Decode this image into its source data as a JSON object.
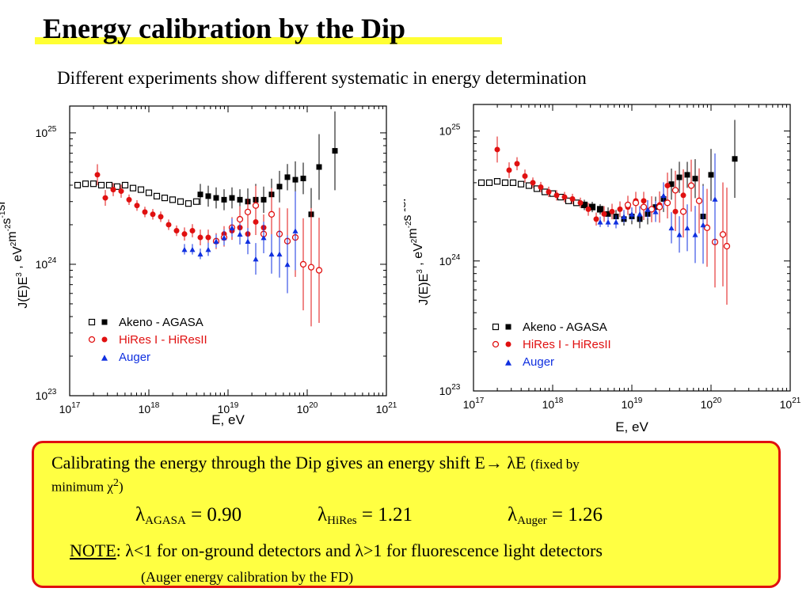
{
  "slide": {
    "title": "Energy calibration by the Dip",
    "subtitle": "Different experiments show different systematic in energy determination"
  },
  "note_box": {
    "line1_main": "Calibrating the energy through the Dip gives an energy shift E→ λE",
    "line1_small": "(fixed by",
    "line2_prefix": "minimum χ",
    "line2_sup": "2",
    "line2_suffix": ")",
    "lambdas": [
      {
        "sym": "λ",
        "sub": "AGASA",
        "value": "= 0.90"
      },
      {
        "sym": "λ",
        "sub": "HiRes",
        "value": "= 1.21"
      },
      {
        "sym": "λ",
        "sub": "Auger",
        "value": "= 1.26"
      }
    ],
    "note_label": "NOTE",
    "note_text": ": λ<1 for on-ground detectors and λ>1 for fluorescence light detectors",
    "fd_text": "(Auger energy calibration by the FD)"
  },
  "colors": {
    "title_bar": "#ffff33",
    "box_fill": "#ffff42",
    "box_border": "#e01010",
    "agasa": "#000000",
    "hires": "#e01010",
    "auger": "#1030e0"
  },
  "chart_data": [
    {
      "type": "scatter",
      "xlabel": "E, eV",
      "ylabel": "J(E)E^3 , eV^2m^-2s^-1sr^-1",
      "xscale": "log",
      "yscale": "log",
      "xlim": [
        1e+17,
        1e+21
      ],
      "ylim": [
        1e+23,
        1.6e+25
      ],
      "x_ticks": [
        {
          "b": "10",
          "e": "17",
          "v": 17
        },
        {
          "b": "10",
          "e": "18",
          "v": 18
        },
        {
          "b": "10",
          "e": "19",
          "v": 19
        },
        {
          "b": "10",
          "e": "20",
          "v": 20
        },
        {
          "b": "10",
          "e": "21",
          "v": 21
        }
      ],
      "y_ticks": [
        {
          "b": "10",
          "e": "23",
          "v": 23
        },
        {
          "b": "10",
          "e": "24",
          "v": 24
        },
        {
          "b": "10",
          "e": "25",
          "v": 25
        }
      ],
      "legend": [
        {
          "label": "Akeno - AGASA"
        },
        {
          "label": "HiRes I - HiResII"
        },
        {
          "label": "Auger"
        }
      ],
      "legend_position": "bottom-left",
      "series": [
        {
          "name": "Akeno - AGASA",
          "marker": "square-open",
          "color": "#000000",
          "x": [
            17.1,
            17.2,
            17.3,
            17.4,
            17.5,
            17.6,
            17.7,
            17.8,
            17.9,
            18.0,
            18.1,
            18.2,
            18.3,
            18.4,
            18.5,
            18.6
          ],
          "y": [
            4e+24,
            4.1e+24,
            4.1e+24,
            4e+24,
            4e+24,
            3.9e+24,
            4e+24,
            3.8e+24,
            3.7e+24,
            3.5e+24,
            3.3e+24,
            3.2e+24,
            3.1e+24,
            3e+24,
            2.9e+24,
            3e+24
          ]
        },
        {
          "name": "Akeno - AGASA",
          "marker": "square-filled",
          "color": "#000000",
          "x": [
            18.65,
            18.75,
            18.85,
            18.95,
            19.05,
            19.15,
            19.25,
            19.35,
            19.45,
            19.55,
            19.65,
            19.75,
            19.85,
            19.95,
            20.05,
            20.15,
            20.35
          ],
          "y": [
            3.4e+24,
            3.3e+24,
            3.2e+24,
            3.1e+24,
            3.2e+24,
            3.1e+24,
            3e+24,
            3.1e+24,
            3.1e+24,
            3.4e+24,
            3.9e+24,
            4.6e+24,
            4.4e+24,
            4.5e+24,
            2.4e+24,
            5.5e+24,
            7.3e+24
          ],
          "err": [
            0.08,
            0.08,
            0.08,
            0.08,
            0.08,
            0.08,
            0.1,
            0.12,
            0.1,
            0.12,
            0.12,
            0.1,
            0.14,
            0.12,
            0.2,
            0.25,
            0.3
          ]
        },
        {
          "name": "HiRes I - HiResII",
          "marker": "circle-filled",
          "color": "#e01010",
          "x": [
            17.35,
            17.45,
            17.55,
            17.65,
            17.75,
            17.85,
            17.95,
            18.05,
            18.15,
            18.25,
            18.35,
            18.45,
            18.55,
            18.65,
            18.75,
            18.85,
            18.95,
            19.05,
            19.15,
            19.25,
            19.35,
            19.45
          ],
          "y": [
            4.8e+24,
            3.2e+24,
            3.7e+24,
            3.6e+24,
            3.1e+24,
            2.8e+24,
            2.5e+24,
            2.4e+24,
            2.3e+24,
            2e+24,
            1.8e+24,
            1.7e+24,
            1.8e+24,
            1.6e+24,
            1.6e+24,
            1.5e+24,
            1.7e+24,
            1.8e+24,
            1.9e+24,
            1.7e+24,
            2.1e+24,
            1.9e+24
          ],
          "err": [
            0.08,
            0.06,
            0.05,
            0.05,
            0.04,
            0.04,
            0.04,
            0.04,
            0.04,
            0.04,
            0.04,
            0.05,
            0.05,
            0.06,
            0.06,
            0.06,
            0.06,
            0.07,
            0.07,
            0.08,
            0.1,
            0.1
          ]
        },
        {
          "name": "HiRes I - HiResII",
          "marker": "circle-open",
          "color": "#e01010",
          "x": [
            18.85,
            18.95,
            19.05,
            19.15,
            19.25,
            19.35,
            19.45,
            19.55,
            19.65,
            19.75,
            19.85,
            19.95,
            20.05,
            20.15
          ],
          "y": [
            1.5e+24,
            1.6e+24,
            1.9e+24,
            2.2e+24,
            2.5e+24,
            2.8e+24,
            1.7e+24,
            2.4e+24,
            1.7e+24,
            1.5e+24,
            1.6e+24,
            1e+24,
            9.5e+23,
            9e+23
          ],
          "err": [
            0.06,
            0.07,
            0.08,
            0.1,
            0.1,
            0.15,
            0.12,
            0.2,
            0.2,
            0.25,
            0.3,
            0.35,
            0.45,
            0.4
          ]
        },
        {
          "name": "Auger",
          "marker": "triangle-filled",
          "color": "#1030e0",
          "x": [
            18.45,
            18.55,
            18.65,
            18.75,
            18.85,
            18.95,
            19.05,
            19.15,
            19.25,
            19.35,
            19.45,
            19.55,
            19.65,
            19.75,
            19.85
          ],
          "y": [
            1.3e+24,
            1.3e+24,
            1.2e+24,
            1.3e+24,
            1.5e+24,
            1.6e+24,
            1.9e+24,
            1.7e+24,
            1.5e+24,
            1.1e+24,
            1.6e+24,
            1.2e+24,
            1.2e+24,
            1e+24,
            1.8e+24
          ],
          "err": [
            0.04,
            0.04,
            0.04,
            0.05,
            0.05,
            0.06,
            0.07,
            0.08,
            0.1,
            0.12,
            0.12,
            0.15,
            0.18,
            0.22,
            0.3
          ]
        }
      ]
    },
    {
      "type": "scatter",
      "xlabel": "E, eV",
      "ylabel": "J(E)E^3 , eV^2m^-2s^-1sr^-1",
      "xscale": "log",
      "yscale": "log",
      "xlim": [
        1e+17,
        1e+21
      ],
      "ylim": [
        1e+23,
        1.6e+25
      ],
      "x_ticks": [
        {
          "b": "10",
          "e": "17",
          "v": 17
        },
        {
          "b": "10",
          "e": "18",
          "v": 18
        },
        {
          "b": "10",
          "e": "19",
          "v": 19
        },
        {
          "b": "10",
          "e": "20",
          "v": 20
        },
        {
          "b": "10",
          "e": "21",
          "v": 21
        }
      ],
      "y_ticks": [
        {
          "b": "10",
          "e": "23",
          "v": 23
        },
        {
          "b": "10",
          "e": "24",
          "v": 24
        },
        {
          "b": "10",
          "e": "25",
          "v": 25
        }
      ],
      "legend": [
        {
          "label": "Akeno - AGASA"
        },
        {
          "label": "HiRes I - HiResII"
        },
        {
          "label": "Auger"
        }
      ],
      "legend_position": "bottom-left",
      "series": [
        {
          "name": "Akeno - AGASA",
          "marker": "square-open",
          "color": "#000000",
          "x": [
            17.1,
            17.2,
            17.3,
            17.4,
            17.5,
            17.6,
            17.7,
            17.8,
            17.9,
            18.0,
            18.1,
            18.2,
            18.3,
            18.4,
            18.5,
            18.6
          ],
          "y": [
            4e+24,
            4e+24,
            4.1e+24,
            4e+24,
            4e+24,
            3.9e+24,
            3.8e+24,
            3.6e+24,
            3.4e+24,
            3.3e+24,
            3.1e+24,
            2.9e+24,
            2.8e+24,
            2.7e+24,
            2.6e+24,
            2.5e+24
          ]
        },
        {
          "name": "Akeno - AGASA",
          "marker": "square-filled",
          "color": "#000000",
          "x": [
            18.4,
            18.5,
            18.6,
            18.7,
            18.8,
            18.9,
            19.0,
            19.1,
            19.2,
            19.3,
            19.4,
            19.5,
            19.6,
            19.7,
            19.8,
            19.9,
            20.0,
            20.3
          ],
          "y": [
            2.7e+24,
            2.6e+24,
            2.5e+24,
            2.3e+24,
            2.2e+24,
            2.1e+24,
            2.2e+24,
            2.1e+24,
            2.3e+24,
            2.6e+24,
            3e+24,
            3.9e+24,
            4.4e+24,
            4.6e+24,
            4.3e+24,
            2.2e+24,
            4.6e+24,
            6.1e+24
          ],
          "err": [
            0.04,
            0.04,
            0.04,
            0.05,
            0.05,
            0.05,
            0.06,
            0.07,
            0.08,
            0.08,
            0.1,
            0.12,
            0.12,
            0.1,
            0.15,
            0.25,
            0.2,
            0.3
          ]
        },
        {
          "name": "HiRes I - HiResII",
          "marker": "circle-filled",
          "color": "#e01010",
          "x": [
            17.3,
            17.45,
            17.55,
            17.65,
            17.75,
            17.85,
            17.95,
            18.05,
            18.15,
            18.25,
            18.35,
            18.45,
            18.55,
            18.65,
            18.75,
            18.85,
            18.95,
            19.05,
            19.15,
            19.25,
            19.35,
            19.45,
            19.55,
            19.65
          ],
          "y": [
            7.2e+24,
            5e+24,
            5.6e+24,
            4.5e+24,
            4e+24,
            3.7e+24,
            3.4e+24,
            3.2e+24,
            3.1e+24,
            3e+24,
            2.8e+24,
            2.5e+24,
            2.1e+24,
            2.3e+24,
            2.4e+24,
            2.5e+24,
            2.6e+24,
            2.9e+24,
            2.9e+24,
            2.5e+24,
            2.7e+24,
            3.8e+24,
            2.4e+24,
            3.2e+24
          ],
          "err": [
            0.1,
            0.06,
            0.05,
            0.05,
            0.04,
            0.04,
            0.04,
            0.04,
            0.04,
            0.04,
            0.04,
            0.05,
            0.05,
            0.06,
            0.06,
            0.06,
            0.06,
            0.07,
            0.07,
            0.08,
            0.1,
            0.1,
            0.15,
            0.2
          ]
        },
        {
          "name": "HiRes I - HiResII",
          "marker": "circle-open",
          "color": "#e01010",
          "x": [
            18.95,
            19.05,
            19.15,
            19.25,
            19.35,
            19.45,
            19.55,
            19.65,
            19.75,
            19.85,
            19.95,
            20.05,
            20.15,
            20.2
          ],
          "y": [
            2.7e+24,
            2.8e+24,
            2.6e+24,
            2.5e+24,
            2.6e+24,
            2.8e+24,
            3.5e+24,
            2.4e+24,
            3.8e+24,
            2.9e+24,
            1.8e+24,
            1.4e+24,
            1.6e+24,
            1.3e+24
          ],
          "err": [
            0.07,
            0.08,
            0.1,
            0.1,
            0.12,
            0.12,
            0.15,
            0.2,
            0.2,
            0.25,
            0.3,
            0.35,
            0.4,
            0.45
          ]
        },
        {
          "name": "Auger",
          "marker": "triangle-filled",
          "color": "#1030e0",
          "x": [
            18.6,
            18.7,
            18.8,
            18.9,
            19.0,
            19.1,
            19.2,
            19.3,
            19.4,
            19.5,
            19.6,
            19.7,
            19.8,
            19.9,
            20.05
          ],
          "y": [
            2e+24,
            2e+24,
            2e+24,
            2.2e+24,
            2.3e+24,
            2.3e+24,
            2.5e+24,
            2.4e+24,
            3.2e+24,
            1.8e+24,
            1.6e+24,
            1.8e+24,
            1.6e+24,
            1.9e+24,
            3e+24
          ],
          "err": [
            0.04,
            0.04,
            0.05,
            0.05,
            0.05,
            0.06,
            0.07,
            0.08,
            0.1,
            0.12,
            0.14,
            0.18,
            0.22,
            0.3,
            0.35
          ]
        }
      ]
    }
  ]
}
